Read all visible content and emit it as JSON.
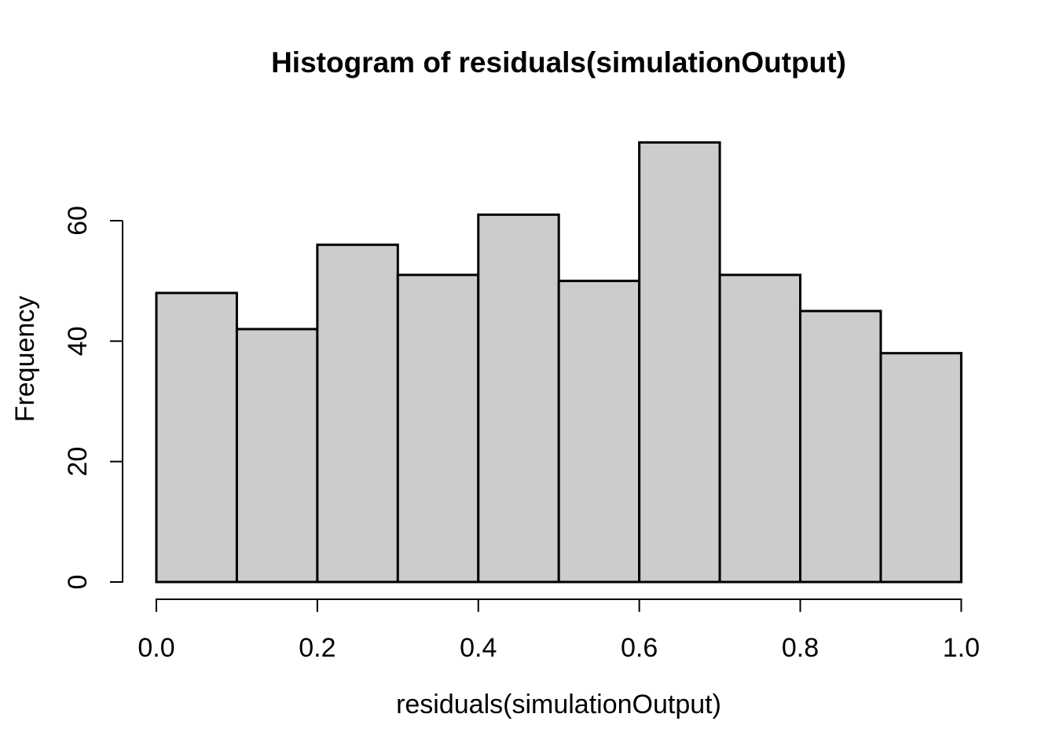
{
  "figure": {
    "background": "#ffffff"
  },
  "chart_data": {
    "type": "bar",
    "subtype": "histogram",
    "title": "Histogram of residuals(simulationOutput)",
    "xlabel": "residuals(simulationOutput)",
    "ylabel": "Frequency",
    "bin_edges": [
      0.0,
      0.1,
      0.2,
      0.3,
      0.4,
      0.5,
      0.6,
      0.7,
      0.8,
      0.9,
      1.0
    ],
    "counts": [
      48,
      42,
      56,
      51,
      61,
      50,
      73,
      51,
      45,
      38
    ],
    "xlim": [
      0.0,
      1.0
    ],
    "y_axis_max": 60,
    "x_ticks": {
      "values": [
        0.0,
        0.2,
        0.4,
        0.6,
        0.8,
        1.0
      ],
      "labels": [
        "0.0",
        "0.2",
        "0.4",
        "0.6",
        "0.8",
        "1.0"
      ]
    },
    "y_ticks": {
      "values": [
        0,
        20,
        40,
        60
      ],
      "labels": [
        "0",
        "20",
        "40",
        "60"
      ]
    },
    "grid": false,
    "legend": false,
    "colors": {
      "bar_fill": "#cccccc",
      "bar_stroke": "#000000",
      "axis": "#000000",
      "text": "#000000"
    }
  }
}
